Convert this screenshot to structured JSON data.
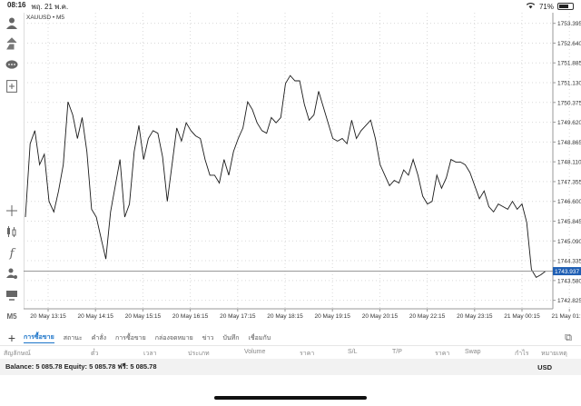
{
  "status_bar": {
    "time": "08:16",
    "date": "พฤ. 21 พ.ค.",
    "battery": "71%",
    "battery_level": 0.71
  },
  "chart": {
    "symbol_label": "XAUUSD • M5",
    "current_price": "1743.937",
    "accent": "#1f5fb4",
    "price_ticks": [
      "1753.395",
      "1752.640",
      "1751.885",
      "1751.130",
      "1750.375",
      "1749.620",
      "1748.865",
      "1748.110",
      "1747.355",
      "1746.600",
      "1745.845",
      "1745.090",
      "1744.335",
      "1743.580",
      "1742.825"
    ],
    "time_ticks": [
      "20 May 13:15",
      "20 May 14:15",
      "20 May 15:15",
      "20 May 16:15",
      "20 May 17:15",
      "20 May 18:15",
      "20 May 19:15",
      "20 May 20:15",
      "20 May 22:15",
      "20 May 23:15",
      "21 May 00:15",
      "21 May 01:15"
    ]
  },
  "chart_data": {
    "type": "line",
    "title": "XAUUSD • M5",
    "xlabel": "",
    "ylabel": "",
    "ylim": [
      1742.5,
      1753.8
    ],
    "grid": true,
    "series": [
      {
        "name": "XAUUSD",
        "values": [
          1746.0,
          1748.8,
          1749.3,
          1748.0,
          1748.4,
          1746.6,
          1746.2,
          1747.0,
          1748.0,
          1750.4,
          1749.9,
          1749.0,
          1749.8,
          1748.5,
          1746.3,
          1746.0,
          1745.2,
          1744.4,
          1746.2,
          1747.2,
          1748.2,
          1746.0,
          1746.5,
          1748.5,
          1749.5,
          1748.2,
          1749.0,
          1749.3,
          1749.2,
          1748.3,
          1746.6,
          1748.0,
          1749.4,
          1748.9,
          1749.6,
          1749.3,
          1749.1,
          1749.0,
          1748.2,
          1747.6,
          1747.6,
          1747.3,
          1748.2,
          1747.6,
          1748.5,
          1749.0,
          1749.4,
          1750.4,
          1750.1,
          1749.6,
          1749.3,
          1749.2,
          1749.8,
          1749.6,
          1749.8,
          1751.1,
          1751.4,
          1751.2,
          1751.2,
          1750.3,
          1749.7,
          1749.9,
          1750.8,
          1750.2,
          1749.6,
          1749.0,
          1748.9,
          1749.0,
          1748.8,
          1749.7,
          1749.0,
          1749.3,
          1749.5,
          1749.7,
          1749.0,
          1748.0,
          1747.6,
          1747.2,
          1747.4,
          1747.3,
          1747.8,
          1747.6,
          1748.2,
          1747.6,
          1746.8,
          1746.5,
          1746.6,
          1747.6,
          1747.1,
          1747.5,
          1748.2,
          1748.1,
          1748.1,
          1748.0,
          1747.7,
          1747.2,
          1746.7,
          1747.0,
          1746.4,
          1746.2,
          1746.5,
          1746.4,
          1746.3,
          1746.6,
          1746.3,
          1746.5,
          1745.8,
          1744.0,
          1743.7,
          1743.8,
          1743.937
        ]
      }
    ]
  },
  "toolbar": {
    "timeframe_label": "M5"
  },
  "tabs": [
    "การซื้อขาย",
    "สถานะ",
    "คำสั่ง",
    "การซื้อขาย",
    "กล่องจดหมาย",
    "ข่าว",
    "บันทึก",
    "เชื่อมกับ"
  ],
  "columns": [
    "สัญลักษณ์",
    "ต๋๋ว",
    "เวลา",
    "ประเภท",
    "Volume",
    "ราคา",
    "S/L",
    "T/P",
    "ราคา",
    "Swap",
    "กำไร",
    "หมายเหตุ"
  ],
  "balance": {
    "text": "Balance: 5 085.78 Equity: 5 085.78 ฟรี: 5 085.78",
    "currency": "USD"
  }
}
